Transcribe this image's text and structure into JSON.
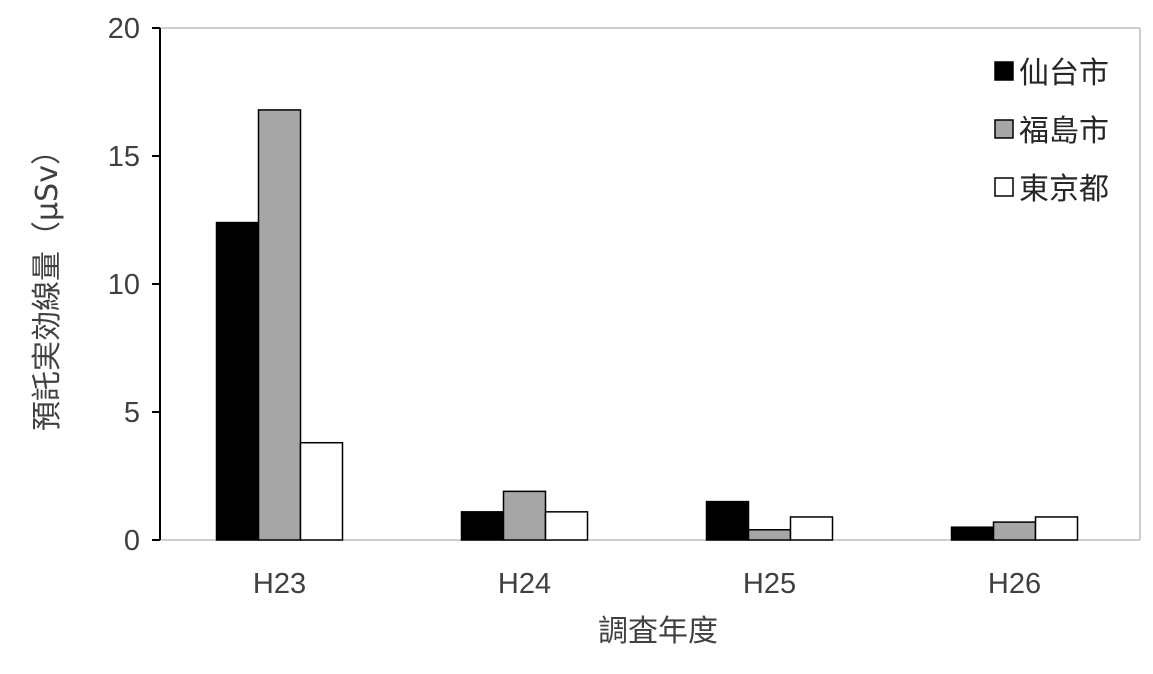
{
  "chart_data": {
    "type": "bar",
    "categories": [
      "H23",
      "H24",
      "H25",
      "H26"
    ],
    "series": [
      {
        "name": "仙台市",
        "values": [
          12.4,
          1.1,
          1.5,
          0.5
        ],
        "color": "#000000"
      },
      {
        "name": "福島市",
        "values": [
          16.8,
          1.9,
          0.4,
          0.7
        ],
        "color": "#a6a6a6"
      },
      {
        "name": "東京都",
        "values": [
          3.8,
          1.1,
          0.9,
          0.9
        ],
        "color": "#ffffff"
      }
    ],
    "title": "",
    "xlabel": "調査年度",
    "ylabel": "預託実効線量（μSv）",
    "ylim": [
      0,
      20
    ],
    "yticks": [
      0,
      5,
      10,
      15,
      20
    ],
    "grid": false,
    "legend_position": "top-right"
  }
}
